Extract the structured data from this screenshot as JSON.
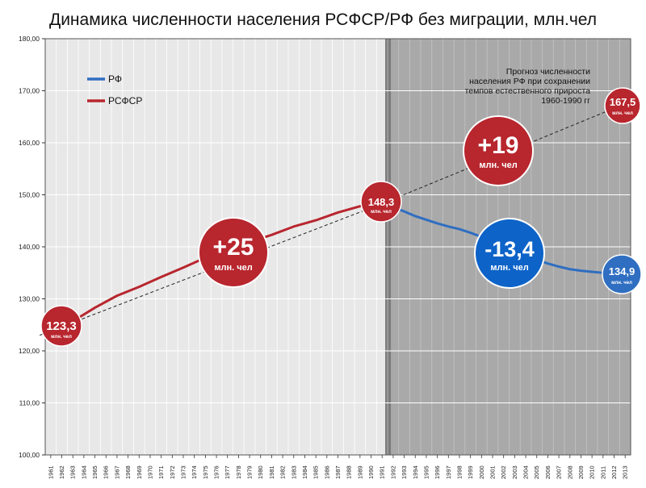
{
  "chart_data": {
    "type": "line",
    "title": "Динамика численности населения РСФСР/РФ без миграции, млн.чел",
    "ylim": [
      100,
      180
    ],
    "y_ticks": [
      "100,00",
      "110,00",
      "120,00",
      "130,00",
      "140,00",
      "150,00",
      "160,00",
      "170,00",
      "180,00"
    ],
    "x_years": [
      1961,
      1962,
      1963,
      1964,
      1965,
      1966,
      1967,
      1968,
      1969,
      1970,
      1971,
      1972,
      1973,
      1974,
      1975,
      1976,
      1977,
      1978,
      1979,
      1980,
      1981,
      1982,
      1983,
      1984,
      1985,
      1986,
      1987,
      1988,
      1989,
      1990,
      1991,
      1992,
      1993,
      1994,
      1995,
      1996,
      1997,
      1998,
      1999,
      2000,
      2001,
      2002,
      2003,
      2004,
      2005,
      2006,
      2007,
      2008,
      2009,
      2010,
      2011,
      2012,
      2013
    ],
    "grid": true,
    "legend": {
      "placement": "top-left",
      "entries": [
        "РФ",
        "РСФСР"
      ]
    },
    "series": [
      {
        "name": "РСФСР",
        "color": "#b8262e",
        "x": [
          1961,
          1963,
          1965,
          1967,
          1969,
          1971,
          1973,
          1975,
          1977,
          1979,
          1981,
          1983,
          1985,
          1987,
          1989,
          1991
        ],
        "values": [
          123.3,
          125.7,
          128.3,
          130.6,
          132.3,
          134.2,
          136.0,
          137.9,
          139.6,
          140.9,
          142.3,
          143.9,
          145.1,
          146.6,
          147.8,
          148.3
        ]
      },
      {
        "name": "РФ",
        "color": "#2f6ec1",
        "x": [
          1991,
          1992,
          1993,
          1994,
          1995,
          1996,
          1997,
          1998,
          1999,
          2000,
          2001,
          2002,
          2003,
          2004,
          2005,
          2006,
          2007,
          2008,
          2009,
          2010,
          2011,
          2012,
          2013
        ],
        "values": [
          148.3,
          147.6,
          146.8,
          145.9,
          145.2,
          144.5,
          143.9,
          143.4,
          142.7,
          141.9,
          141.0,
          140.1,
          139.2,
          138.3,
          137.5,
          136.8,
          136.2,
          135.7,
          135.4,
          135.2,
          135.0,
          134.95,
          134.9
        ]
      }
    ],
    "forecast": {
      "x": [
        1960,
        1991,
        2013
      ],
      "values": [
        123.0,
        148.3,
        167.5
      ],
      "note_lines": [
        "Прогноз численности",
        "населения РФ при сохранении",
        "темпов естественного прироста",
        "1960-1990 гг"
      ]
    },
    "annotations": {
      "start": {
        "value": "123,3",
        "unit": "млн. чел",
        "color": "#b8262e"
      },
      "peak": {
        "value": "148,3",
        "unit": "млн. чел",
        "color": "#b8262e"
      },
      "end": {
        "value": "134,9",
        "unit": "млн. чел",
        "color": "#2f6ec1"
      },
      "forecast_end": {
        "value": "167,5",
        "unit": "млн. чел",
        "color": "#b8262e"
      },
      "growth": {
        "value": "+25",
        "unit": "млн. чел",
        "color": "#b8262e"
      },
      "forecast_gap": {
        "value": "+19",
        "unit": "млн. чел",
        "color": "#b8262e"
      },
      "decline": {
        "value": "-13,4",
        "unit": "млн. чел",
        "color": "#0d63c8"
      }
    }
  }
}
